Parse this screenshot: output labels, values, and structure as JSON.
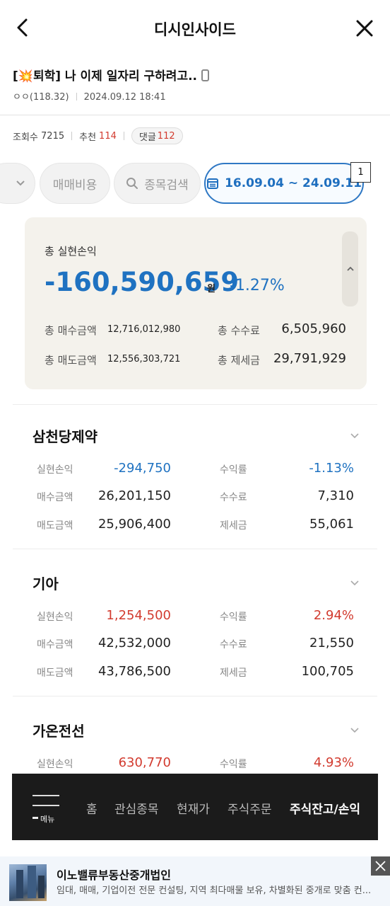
{
  "header": {
    "title": "디시인사이드",
    "back_icon": "chevron-left-icon",
    "close_icon": "close-icon"
  },
  "post": {
    "prefix_open": "[",
    "prefix_emoji": "💥",
    "prefix_word": "퇴학",
    "prefix_close": "]",
    "title_text": " 나 이제 일자리 구하려고..",
    "device_icon": "mobile-phone-icon",
    "author": "ㅇㅇ(118.32)",
    "datetime": "2024.09.12 18:41"
  },
  "stats": {
    "views_label": "조회수",
    "views": "7215",
    "recommend_label": "추천",
    "recommend": "114",
    "comment_label": "댓글",
    "comments": "112"
  },
  "filters": {
    "fee_label": "매매비용",
    "search_label": "종목검색",
    "date_range": "16.09.04 ~ 24.09.11",
    "badge": "1"
  },
  "summary": {
    "label": "총 실현손익",
    "total": "-160,590,659",
    "unit": "원",
    "pct": "-1.27%",
    "buy_label": "총 매수금액",
    "buy_value": "12,716,012,980",
    "sell_label": "총 매도금액",
    "sell_value": "12,556,303,721",
    "fee_label": "총 수수료",
    "fee_value": "6,505,960",
    "tax_label": "총 제세금",
    "tax_value": "29,791,929"
  },
  "labels": {
    "realized": "실현손익",
    "rate": "수익률",
    "buy": "매수금액",
    "fee": "수수료",
    "sell": "매도금액",
    "tax": "제세금"
  },
  "stocks": [
    {
      "name": "삼천당제약",
      "realized": "-294,750",
      "rate": "-1.13%",
      "buy": "26,201,150",
      "fee": "7,310",
      "sell": "25,906,400",
      "tax": "55,061",
      "trend_color": "blue"
    },
    {
      "name": "기아",
      "realized": "1,254,500",
      "rate": "2.94%",
      "buy": "42,532,000",
      "fee": "21,550",
      "sell": "43,786,500",
      "tax": "100,705",
      "trend_color": "red"
    },
    {
      "name": "가온전선",
      "realized": "630,770",
      "rate": "4.93%",
      "trend_color": "red"
    }
  ],
  "bottom_nav": {
    "menu_label": "메뉴",
    "items": [
      "홈",
      "관심종목",
      "현재가",
      "주식주문",
      "주식잔고/손익"
    ],
    "active": "주식잔고/손익"
  },
  "ad": {
    "title": "이노밸류부동산중개법인",
    "description": "임대, 매매, 기업이전 전문 컨설팅, 지역 최다매물 보유, 차별화된 중개로 맞춤 컨..."
  },
  "colors": {
    "blue": "#1f72c1",
    "red": "#d23b2f",
    "nav_bg": "#1b1b1b",
    "card_bg": "#f4f2ec"
  }
}
